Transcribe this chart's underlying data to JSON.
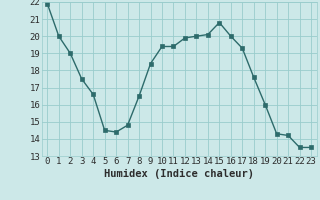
{
  "x": [
    0,
    1,
    2,
    3,
    4,
    5,
    6,
    7,
    8,
    9,
    10,
    11,
    12,
    13,
    14,
    15,
    16,
    17,
    18,
    19,
    20,
    21,
    22,
    23
  ],
  "y": [
    21.9,
    20.0,
    19.0,
    17.5,
    16.6,
    14.5,
    14.4,
    14.8,
    16.5,
    18.4,
    19.4,
    19.4,
    19.9,
    20.0,
    20.1,
    20.8,
    20.0,
    19.3,
    17.6,
    16.0,
    14.3,
    14.2,
    13.5,
    13.5
  ],
  "xlabel": "Humidex (Indice chaleur)",
  "xlim": [
    -0.5,
    23.5
  ],
  "ylim": [
    13,
    22
  ],
  "yticks": [
    13,
    14,
    15,
    16,
    17,
    18,
    19,
    20,
    21,
    22
  ],
  "xticks": [
    0,
    1,
    2,
    3,
    4,
    5,
    6,
    7,
    8,
    9,
    10,
    11,
    12,
    13,
    14,
    15,
    16,
    17,
    18,
    19,
    20,
    21,
    22,
    23
  ],
  "line_color": "#2d6b6b",
  "marker_color": "#2d6b6b",
  "bg_color": "#cce8e8",
  "grid_color": "#99cccc",
  "font_color": "#2d2d2d",
  "label_fontsize": 7.5,
  "tick_fontsize": 6.5
}
